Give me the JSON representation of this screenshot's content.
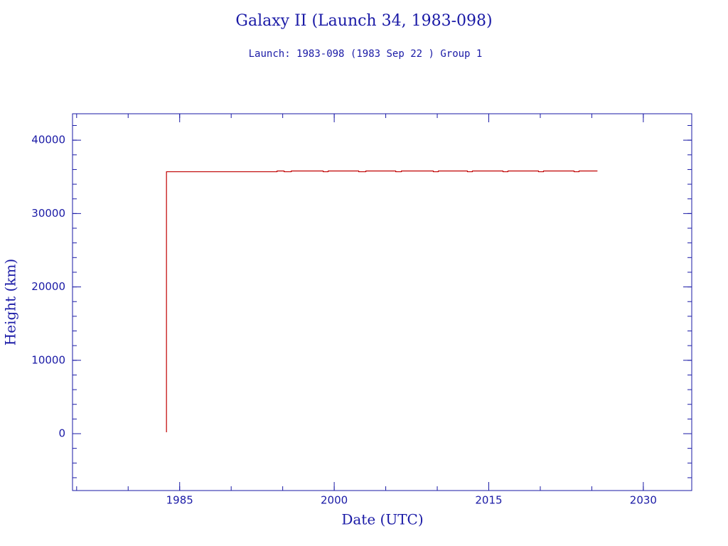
{
  "chart_data": {
    "type": "line",
    "title": "Galaxy II (Launch 34, 1983-098)",
    "subtitle": "Launch: 1983-098  (1983 Sep 22 )  Group 1",
    "x_label": "Date (UTC)",
    "y_label": "Height (km)",
    "x": [
      1983.72,
      1983.72,
      1994.45,
      1994.45,
      1995.14,
      1995.14,
      1995.83,
      1995.83,
      1998.93,
      1998.93,
      1999.41,
      1999.41,
      2002.38,
      2002.38,
      2003.07,
      2003.07,
      2005.97,
      2005.97,
      2006.52,
      2006.52,
      2009.62,
      2009.62,
      2010.1,
      2010.1,
      2012.93,
      2012.93,
      2013.41,
      2013.41,
      2016.38,
      2016.38,
      2016.86,
      2016.86,
      2019.83,
      2019.83,
      2020.31,
      2020.31,
      2023.28,
      2023.28,
      2023.76,
      2023.76,
      2025.55
    ],
    "series": [
      {
        "name": "Height",
        "color": "#c00000",
        "values": [
          200,
          35700,
          35700,
          35800,
          35800,
          35700,
          35700,
          35800,
          35800,
          35700,
          35700,
          35800,
          35800,
          35700,
          35700,
          35800,
          35800,
          35700,
          35700,
          35800,
          35800,
          35700,
          35700,
          35800,
          35800,
          35700,
          35700,
          35800,
          35800,
          35700,
          35700,
          35800,
          35800,
          35700,
          35700,
          35800,
          35800,
          35700,
          35700,
          35800,
          35800
        ]
      }
    ],
    "xlim": [
      1974.6,
      2034.7
    ],
    "xticks": [
      1985,
      2000,
      2015,
      2030
    ],
    "ylim": [
      -7750,
      43600
    ],
    "yticks": [
      0,
      10000,
      20000,
      30000,
      40000
    ],
    "axis_color": "#1a1aa6"
  }
}
